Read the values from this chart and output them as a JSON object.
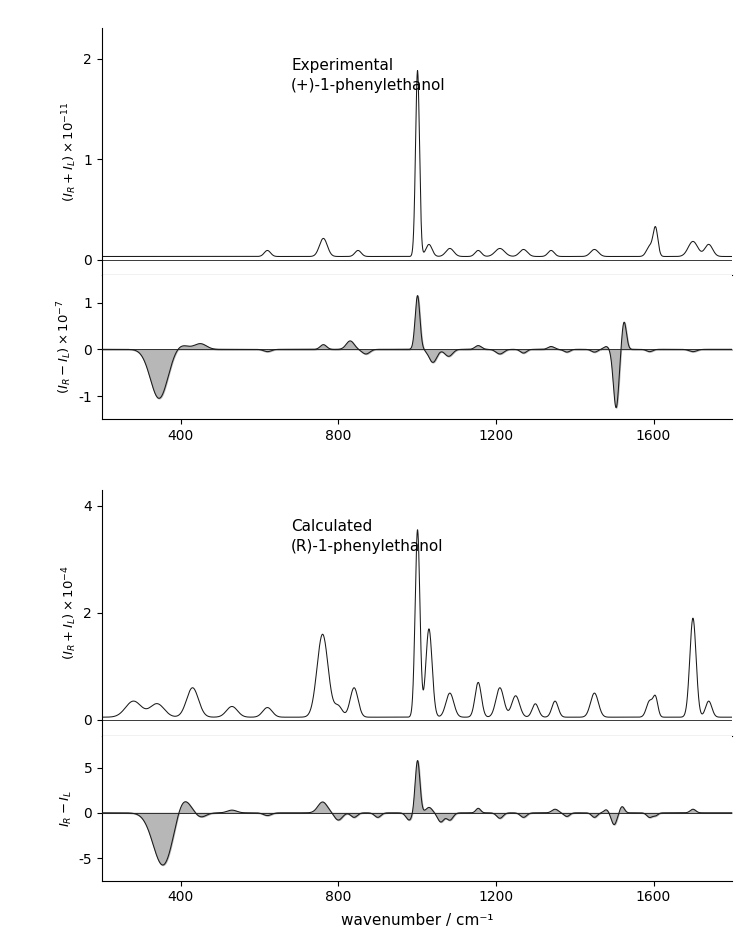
{
  "x_range": [
    200,
    1800
  ],
  "x_ticks": [
    400,
    800,
    1200,
    1600
  ],
  "xlabel": "wavenumber / cm⁻¹",
  "exp_raman_label": "Experimental\n(+)-1-phenylethanol",
  "exp_raman_ylim": [
    -0.15,
    2.3
  ],
  "exp_raman_yticks": [
    0,
    1,
    2
  ],
  "exp_roa_ylim": [
    -1.5,
    1.6
  ],
  "exp_roa_yticks": [
    -1,
    0,
    1
  ],
  "calc_raman_label": "Calculated\n(R)-1-phenylethanol",
  "calc_raman_ylim": [
    -0.3,
    4.3
  ],
  "calc_raman_yticks": [
    0,
    2,
    4
  ],
  "calc_roa_ylim": [
    -7.5,
    8.5
  ],
  "calc_roa_yticks": [
    -5,
    0,
    5
  ],
  "line_color": "#1a1a1a",
  "fill_color": "#b0b0b0",
  "background": "#ffffff"
}
